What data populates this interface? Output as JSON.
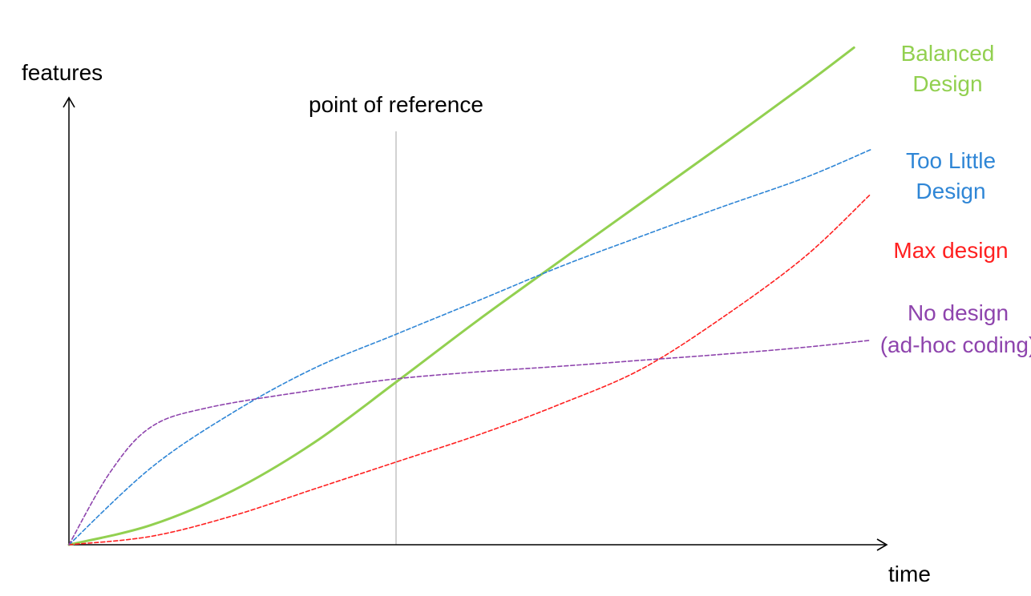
{
  "chart_data": {
    "type": "line",
    "xlabel": "time",
    "ylabel": "features",
    "xlim": [
      0,
      1
    ],
    "ylim": [
      0,
      1
    ],
    "grid": false,
    "legend": "right-of-plot, labels next to line ends",
    "annotations": [
      {
        "text": "point of reference",
        "x": 0.4
      }
    ],
    "series": [
      {
        "name_lines": [
          "Balanced",
          "Design"
        ],
        "color": "#92d050",
        "style": "solid",
        "x": [
          0,
          0.1,
          0.2,
          0.3,
          0.4,
          0.5,
          0.6,
          0.7,
          0.8,
          0.9,
          0.96
        ],
        "y": [
          0,
          0.042,
          0.116,
          0.22,
          0.35,
          0.483,
          0.61,
          0.736,
          0.862,
          0.99,
          1.07
        ]
      },
      {
        "name_lines": [
          "Too Little",
          "Design"
        ],
        "color": "#2f86d6",
        "style": "dashed",
        "x": [
          0,
          0.1,
          0.2,
          0.3,
          0.4,
          0.5,
          0.6,
          0.7,
          0.8,
          0.9,
          0.98
        ],
        "y": [
          0,
          0.165,
          0.284,
          0.38,
          0.453,
          0.525,
          0.598,
          0.664,
          0.728,
          0.79,
          0.85
        ]
      },
      {
        "name_lines": [
          "Max design"
        ],
        "color": "#ff2020",
        "style": "dashed",
        "x": [
          0,
          0.1,
          0.2,
          0.3,
          0.4,
          0.5,
          0.6,
          0.7,
          0.8,
          0.9,
          0.98
        ],
        "y": [
          0,
          0.018,
          0.062,
          0.12,
          0.178,
          0.236,
          0.302,
          0.378,
          0.49,
          0.62,
          0.754
        ]
      },
      {
        "name_lines": [
          "No design",
          "(ad-hoc coding)"
        ],
        "color": "#8e44ad",
        "style": "dashed",
        "x": [
          0,
          0.05,
          0.1,
          0.17,
          0.3,
          0.4,
          0.5,
          0.6,
          0.7,
          0.8,
          0.9,
          0.98
        ],
        "y": [
          0,
          0.155,
          0.253,
          0.295,
          0.333,
          0.357,
          0.372,
          0.384,
          0.397,
          0.41,
          0.425,
          0.44
        ]
      }
    ]
  }
}
